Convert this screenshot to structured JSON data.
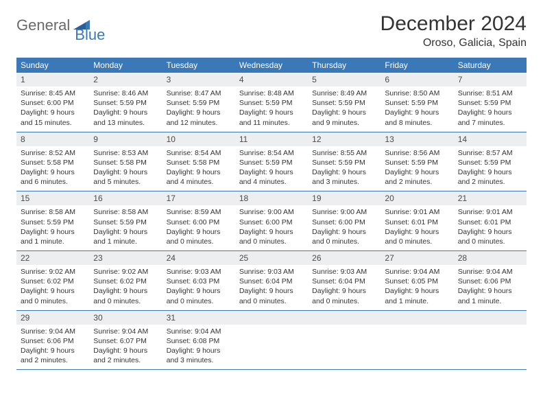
{
  "logo": {
    "part1": "General",
    "part2": "Blue"
  },
  "title": "December 2024",
  "location": "Oroso, Galicia, Spain",
  "colors": {
    "header_bg": "#3b78b8",
    "header_text": "#ffffff",
    "daynum_bg": "#eceeef",
    "border": "#3b78b8",
    "text": "#333333",
    "logo_gray": "#6a6a6a",
    "logo_blue": "#3b78b8"
  },
  "dayHeaders": [
    "Sunday",
    "Monday",
    "Tuesday",
    "Wednesday",
    "Thursday",
    "Friday",
    "Saturday"
  ],
  "weeks": [
    [
      {
        "n": "1",
        "sr": "Sunrise: 8:45 AM",
        "ss": "Sunset: 6:00 PM",
        "dl": "Daylight: 9 hours and 15 minutes."
      },
      {
        "n": "2",
        "sr": "Sunrise: 8:46 AM",
        "ss": "Sunset: 5:59 PM",
        "dl": "Daylight: 9 hours and 13 minutes."
      },
      {
        "n": "3",
        "sr": "Sunrise: 8:47 AM",
        "ss": "Sunset: 5:59 PM",
        "dl": "Daylight: 9 hours and 12 minutes."
      },
      {
        "n": "4",
        "sr": "Sunrise: 8:48 AM",
        "ss": "Sunset: 5:59 PM",
        "dl": "Daylight: 9 hours and 11 minutes."
      },
      {
        "n": "5",
        "sr": "Sunrise: 8:49 AM",
        "ss": "Sunset: 5:59 PM",
        "dl": "Daylight: 9 hours and 9 minutes."
      },
      {
        "n": "6",
        "sr": "Sunrise: 8:50 AM",
        "ss": "Sunset: 5:59 PM",
        "dl": "Daylight: 9 hours and 8 minutes."
      },
      {
        "n": "7",
        "sr": "Sunrise: 8:51 AM",
        "ss": "Sunset: 5:59 PM",
        "dl": "Daylight: 9 hours and 7 minutes."
      }
    ],
    [
      {
        "n": "8",
        "sr": "Sunrise: 8:52 AM",
        "ss": "Sunset: 5:58 PM",
        "dl": "Daylight: 9 hours and 6 minutes."
      },
      {
        "n": "9",
        "sr": "Sunrise: 8:53 AM",
        "ss": "Sunset: 5:58 PM",
        "dl": "Daylight: 9 hours and 5 minutes."
      },
      {
        "n": "10",
        "sr": "Sunrise: 8:54 AM",
        "ss": "Sunset: 5:58 PM",
        "dl": "Daylight: 9 hours and 4 minutes."
      },
      {
        "n": "11",
        "sr": "Sunrise: 8:54 AM",
        "ss": "Sunset: 5:59 PM",
        "dl": "Daylight: 9 hours and 4 minutes."
      },
      {
        "n": "12",
        "sr": "Sunrise: 8:55 AM",
        "ss": "Sunset: 5:59 PM",
        "dl": "Daylight: 9 hours and 3 minutes."
      },
      {
        "n": "13",
        "sr": "Sunrise: 8:56 AM",
        "ss": "Sunset: 5:59 PM",
        "dl": "Daylight: 9 hours and 2 minutes."
      },
      {
        "n": "14",
        "sr": "Sunrise: 8:57 AM",
        "ss": "Sunset: 5:59 PM",
        "dl": "Daylight: 9 hours and 2 minutes."
      }
    ],
    [
      {
        "n": "15",
        "sr": "Sunrise: 8:58 AM",
        "ss": "Sunset: 5:59 PM",
        "dl": "Daylight: 9 hours and 1 minute."
      },
      {
        "n": "16",
        "sr": "Sunrise: 8:58 AM",
        "ss": "Sunset: 5:59 PM",
        "dl": "Daylight: 9 hours and 1 minute."
      },
      {
        "n": "17",
        "sr": "Sunrise: 8:59 AM",
        "ss": "Sunset: 6:00 PM",
        "dl": "Daylight: 9 hours and 0 minutes."
      },
      {
        "n": "18",
        "sr": "Sunrise: 9:00 AM",
        "ss": "Sunset: 6:00 PM",
        "dl": "Daylight: 9 hours and 0 minutes."
      },
      {
        "n": "19",
        "sr": "Sunrise: 9:00 AM",
        "ss": "Sunset: 6:00 PM",
        "dl": "Daylight: 9 hours and 0 minutes."
      },
      {
        "n": "20",
        "sr": "Sunrise: 9:01 AM",
        "ss": "Sunset: 6:01 PM",
        "dl": "Daylight: 9 hours and 0 minutes."
      },
      {
        "n": "21",
        "sr": "Sunrise: 9:01 AM",
        "ss": "Sunset: 6:01 PM",
        "dl": "Daylight: 9 hours and 0 minutes."
      }
    ],
    [
      {
        "n": "22",
        "sr": "Sunrise: 9:02 AM",
        "ss": "Sunset: 6:02 PM",
        "dl": "Daylight: 9 hours and 0 minutes."
      },
      {
        "n": "23",
        "sr": "Sunrise: 9:02 AM",
        "ss": "Sunset: 6:02 PM",
        "dl": "Daylight: 9 hours and 0 minutes."
      },
      {
        "n": "24",
        "sr": "Sunrise: 9:03 AM",
        "ss": "Sunset: 6:03 PM",
        "dl": "Daylight: 9 hours and 0 minutes."
      },
      {
        "n": "25",
        "sr": "Sunrise: 9:03 AM",
        "ss": "Sunset: 6:04 PM",
        "dl": "Daylight: 9 hours and 0 minutes."
      },
      {
        "n": "26",
        "sr": "Sunrise: 9:03 AM",
        "ss": "Sunset: 6:04 PM",
        "dl": "Daylight: 9 hours and 0 minutes."
      },
      {
        "n": "27",
        "sr": "Sunrise: 9:04 AM",
        "ss": "Sunset: 6:05 PM",
        "dl": "Daylight: 9 hours and 1 minute."
      },
      {
        "n": "28",
        "sr": "Sunrise: 9:04 AM",
        "ss": "Sunset: 6:06 PM",
        "dl": "Daylight: 9 hours and 1 minute."
      }
    ],
    [
      {
        "n": "29",
        "sr": "Sunrise: 9:04 AM",
        "ss": "Sunset: 6:06 PM",
        "dl": "Daylight: 9 hours and 2 minutes."
      },
      {
        "n": "30",
        "sr": "Sunrise: 9:04 AM",
        "ss": "Sunset: 6:07 PM",
        "dl": "Daylight: 9 hours and 2 minutes."
      },
      {
        "n": "31",
        "sr": "Sunrise: 9:04 AM",
        "ss": "Sunset: 6:08 PM",
        "dl": "Daylight: 9 hours and 3 minutes."
      },
      {
        "empty": true
      },
      {
        "empty": true
      },
      {
        "empty": true
      },
      {
        "empty": true
      }
    ]
  ]
}
